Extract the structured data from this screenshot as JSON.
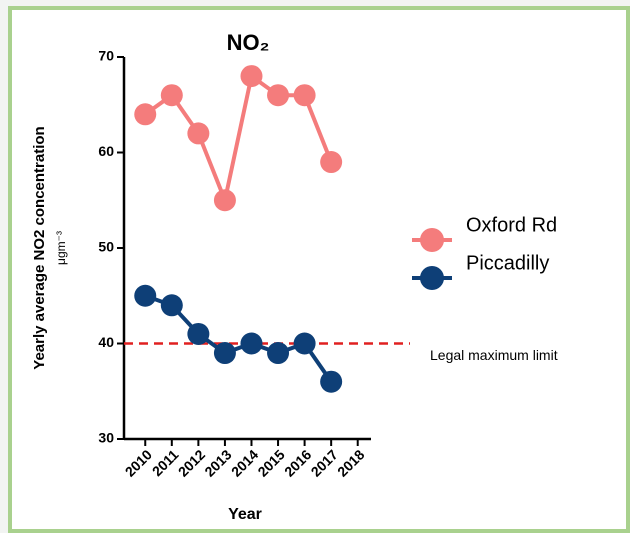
{
  "chart_data": {
    "type": "line",
    "title": "NO₂",
    "y_label": "Yearly average NO2 concentration",
    "y_unit": "μgm⁻³",
    "x_label": "Year",
    "x": [
      2010,
      2011,
      2012,
      2013,
      2014,
      2015,
      2016,
      2017
    ],
    "series": [
      {
        "name": "Oxford Rd",
        "color": "#f47c7c",
        "values": [
          64,
          66,
          62,
          55,
          68,
          66,
          66,
          59
        ]
      },
      {
        "name": "Piccadilly",
        "color": "#0e3f77",
        "values": [
          45,
          44,
          41,
          39,
          40,
          39,
          40,
          36
        ]
      }
    ],
    "xlim": [
      2009.2,
      2018.5
    ],
    "xticks": [
      2010,
      2011,
      2012,
      2013,
      2014,
      2015,
      2016,
      2017,
      2018
    ],
    "ylim": [
      30,
      70
    ],
    "yticks": [
      30,
      40,
      50,
      60,
      70
    ],
    "reference_line": {
      "value": 40,
      "label": "Legal maximum limit",
      "color": "#e02020"
    },
    "legend": "right"
  }
}
